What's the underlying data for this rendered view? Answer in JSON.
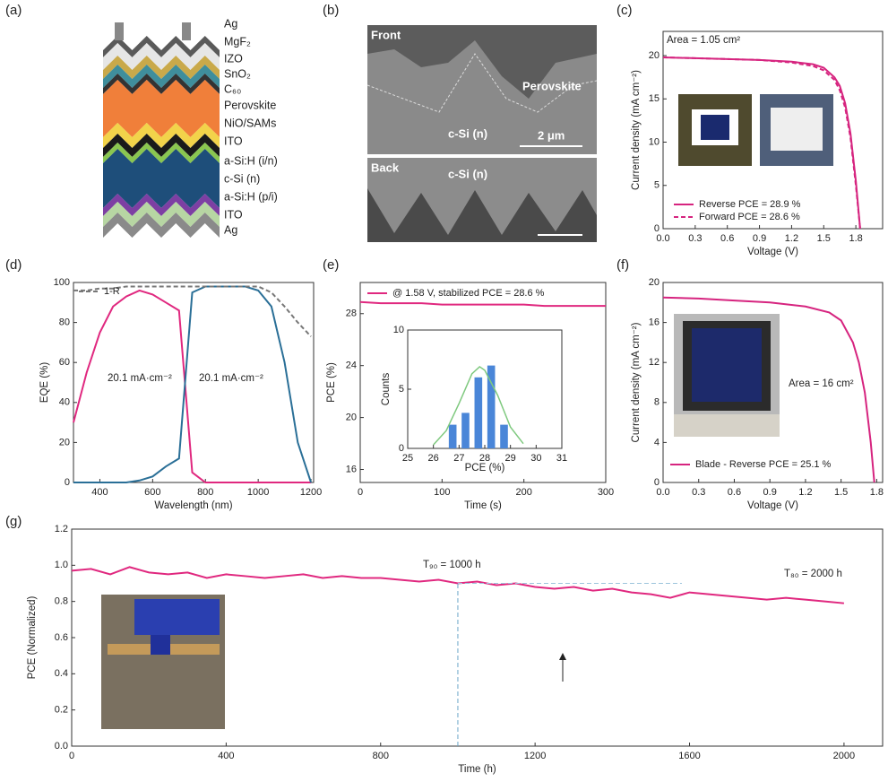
{
  "panel_labels": [
    "(a)",
    "(b)",
    "(c)",
    "(d)",
    "(e)",
    "(f)",
    "(g)"
  ],
  "layer_stack": {
    "labels": [
      "Ag",
      "MgF₂",
      "IZO",
      "SnO₂",
      "C₆₀",
      "Perovskite",
      "NiO/SAMs",
      "ITO",
      "a-Si:H (i/n)",
      "c-Si (n)",
      "a-Si:H (p/i)",
      "ITO",
      "Ag"
    ]
  },
  "sem_image": {
    "front_label": "Front",
    "perovskite_label": "Perovskite",
    "front_si_label": "c-Si (n)",
    "scale_bar": "2 μm",
    "back_label": "Back",
    "back_si_label": "c-Si (n)"
  },
  "chart_data": [
    {
      "type": "line",
      "x_label": "Voltage (V)",
      "y_label": "Current density (mA cm⁻²)",
      "annotations": [
        "Area = 1.05 cm²"
      ],
      "x": [
        0,
        0.3,
        0.6,
        0.9,
        1.2,
        1.4,
        1.5,
        1.6,
        1.65,
        1.7,
        1.75,
        1.8,
        1.84
      ],
      "series": [
        {
          "name": "Reverse PCE = 28.9 %",
          "color": "#d6247f",
          "dash": "solid",
          "values": [
            19.8,
            19.7,
            19.6,
            19.5,
            19.3,
            19.0,
            18.6,
            17.5,
            16.5,
            14.5,
            11,
            5.5,
            0
          ]
        },
        {
          "name": "Forward PCE = 28.6 %",
          "color": "#d6247f",
          "dash": "dashed",
          "values": [
            19.8,
            19.7,
            19.6,
            19.5,
            19.2,
            18.8,
            18.3,
            17.2,
            16.0,
            14.0,
            10.5,
            5,
            0
          ]
        }
      ],
      "xlim": [
        0,
        2.05
      ],
      "xticks": [
        {
          "value": 0,
          "label": "0.0"
        },
        0.3,
        0.6,
        0.9,
        1.2,
        1.5,
        1.8
      ],
      "ylim": [
        0,
        22.8
      ],
      "yticks": [
        0,
        5,
        10,
        15,
        20
      ],
      "legend": "lower left"
    },
    {
      "type": "line",
      "x_label": "Wavelength (nm)",
      "y_label": "EQE (%)",
      "annotations": [
        "20.1 mA·cm⁻²",
        "20.1 mA·cm⁻²"
      ],
      "x": [
        300,
        350,
        400,
        450,
        500,
        550,
        600,
        650,
        700,
        750,
        800,
        850,
        900,
        950,
        1000,
        1050,
        1100,
        1150,
        1200
      ],
      "series": [
        {
          "color": "#e0287f",
          "dash": "solid",
          "values": [
            30,
            55,
            75,
            88,
            93,
            96,
            94,
            90,
            86,
            5,
            0,
            0,
            0,
            0,
            0,
            0,
            0,
            0,
            0
          ]
        },
        {
          "color": "#2a6f97",
          "dash": "solid",
          "values": [
            0,
            0,
            0,
            0,
            0,
            1,
            3,
            8,
            12,
            95,
            98,
            98,
            98,
            98,
            96,
            88,
            60,
            20,
            0
          ]
        },
        {
          "name": "1-R",
          "color": "#777777",
          "dash": "dashed",
          "values": [
            96,
            96,
            97,
            97,
            98,
            98,
            98,
            98,
            98,
            98,
            98,
            98,
            98,
            98,
            98,
            95,
            88,
            80,
            73
          ]
        }
      ],
      "xlim": [
        300,
        1210
      ],
      "xticks": [
        400,
        600,
        800,
        1000,
        1200
      ],
      "ylim": [
        0,
        100
      ],
      "yticks": [
        0,
        20,
        40,
        60,
        80,
        100
      ],
      "legend": "upper left"
    },
    {
      "type": "line",
      "x_label": "Time (s)",
      "y_label": "PCE (%)",
      "x": [
        0,
        25,
        50,
        75,
        100,
        125,
        150,
        175,
        200,
        225,
        250,
        275,
        300
      ],
      "series": [
        {
          "name": "@ 1.58 V, stabilized PCE = 28.6 %",
          "color": "#e0287f",
          "dash": "solid",
          "values": [
            28.9,
            28.8,
            28.8,
            28.8,
            28.7,
            28.7,
            28.7,
            28.7,
            28.7,
            28.6,
            28.6,
            28.6,
            28.6
          ]
        }
      ],
      "xlim": [
        0,
        300
      ],
      "xticks": [
        0,
        100,
        200,
        300
      ],
      "ylim": [
        15,
        30.4
      ],
      "yticks": [
        16,
        20,
        24,
        28
      ],
      "legend": "upper left"
    },
    {
      "type": "histogram",
      "x_label": "PCE (%)",
      "y_label": "Counts",
      "color": "#4a86d8",
      "bins": [
        26.5,
        27,
        27.5,
        28,
        28.5,
        29
      ],
      "values": [
        2,
        3,
        6,
        7,
        2
      ],
      "fit": {
        "color": "#7fc97f",
        "x": [
          26,
          26.5,
          27,
          27.5,
          27.8,
          28,
          28.5,
          29,
          29.5
        ],
        "values": [
          0.3,
          1.5,
          3.8,
          6.3,
          6.9,
          6.6,
          4.5,
          1.8,
          0.4
        ]
      },
      "xlim": [
        25,
        31
      ],
      "xticks": [
        25,
        26,
        27,
        28,
        29,
        30,
        31
      ],
      "ylim": [
        0,
        10
      ],
      "yticks": [
        0,
        5,
        10
      ]
    },
    {
      "type": "line",
      "x_label": "Voltage (V)",
      "y_label": "Current density (mA cm⁻²)",
      "annotations": [
        "Area = 16 cm²"
      ],
      "x": [
        0,
        0.3,
        0.6,
        0.9,
        1.2,
        1.4,
        1.5,
        1.6,
        1.65,
        1.7,
        1.75,
        1.78
      ],
      "series": [
        {
          "name": "Blade - Reverse PCE = 25.1 %",
          "color": "#d6247f",
          "dash": "solid",
          "values": [
            18.5,
            18.4,
            18.2,
            18.0,
            17.6,
            17,
            16.2,
            14,
            12,
            9,
            4,
            0
          ]
        }
      ],
      "xlim": [
        0,
        1.85
      ],
      "xticks": [
        {
          "value": 0,
          "label": "0.0"
        },
        0.3,
        0.6,
        0.9,
        1.2,
        1.5,
        1.8
      ],
      "ylim": [
        0,
        20
      ],
      "yticks": [
        0,
        4,
        8,
        12,
        16,
        20
      ],
      "legend": "lower left"
    },
    {
      "type": "line",
      "x_label": "Time (h)",
      "y_label": "PCE (Normalized)",
      "annotations": [
        "T₉₀ = 1000 h",
        "T₈₀ = 2000 h"
      ],
      "x": [
        0,
        50,
        100,
        150,
        200,
        250,
        300,
        350,
        400,
        450,
        500,
        550,
        600,
        650,
        700,
        750,
        800,
        850,
        900,
        950,
        1000,
        1050,
        1100,
        1150,
        1200,
        1250,
        1300,
        1350,
        1400,
        1450,
        1500,
        1550,
        1600,
        1650,
        1700,
        1750,
        1800,
        1850,
        1900,
        1950,
        2000
      ],
      "series": [
        {
          "color": "#e0287f",
          "dash": "solid",
          "values": [
            0.97,
            0.98,
            0.95,
            0.99,
            0.96,
            0.95,
            0.96,
            0.93,
            0.95,
            0.94,
            0.93,
            0.94,
            0.95,
            0.93,
            0.94,
            0.93,
            0.93,
            0.92,
            0.91,
            0.92,
            0.9,
            0.91,
            0.89,
            0.9,
            0.88,
            0.87,
            0.88,
            0.86,
            0.87,
            0.85,
            0.84,
            0.82,
            0.85,
            0.84,
            0.83,
            0.82,
            0.81,
            0.82,
            0.81,
            0.8,
            0.79
          ]
        }
      ],
      "reference_line": {
        "x": 1000,
        "y": 0.9
      },
      "xlim": [
        0,
        2100
      ],
      "xticks": [
        0,
        400,
        800,
        1200,
        1600,
        2000
      ],
      "ylim": [
        0,
        1.2
      ],
      "yticks": [
        {
          "value": 0,
          "label": "0.0"
        },
        0.2,
        0.4,
        0.6,
        0.8,
        {
          "value": 1,
          "label": "1.0"
        },
        1.2
      ]
    }
  ]
}
